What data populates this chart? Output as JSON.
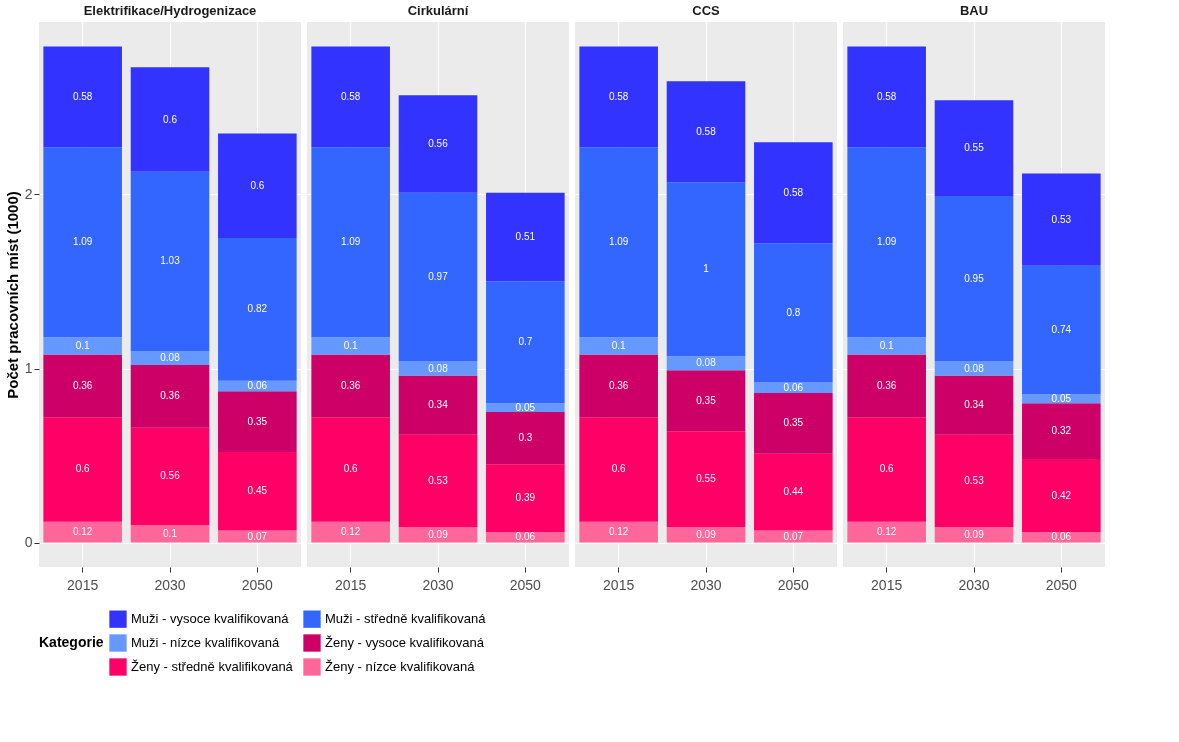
{
  "chart_data": [
    {
      "type": "bar",
      "title": "Elektrifikace/Hydrogenizace",
      "ylabel": "Počet pracovních míst (1000)",
      "categories": [
        "2015",
        "2030",
        "2050"
      ],
      "stacked": true,
      "data_labels": true,
      "grid": true,
      "legend": "bottom",
      "legend_title": "Kategorie",
      "ylim": [
        -0.14,
        2.99
      ],
      "yticks": [
        0,
        1,
        2
      ],
      "series": [
        {
          "name": "Ženy - nízce kvalifikovaná",
          "color": "#ff6699",
          "values": [
            0.12,
            0.1,
            0.07
          ]
        },
        {
          "name": "Ženy - středně kvalifikovaná",
          "color": "#ff0066",
          "values": [
            0.6,
            0.56,
            0.45
          ]
        },
        {
          "name": "Ženy - vysoce kvalifikovaná",
          "color": "#cc0066",
          "values": [
            0.36,
            0.36,
            0.35
          ]
        },
        {
          "name": "Muži - nízce kvalifikovaná",
          "color": "#6699ff",
          "values": [
            0.1,
            0.08,
            0.06
          ]
        },
        {
          "name": "Muži - středně kvalifikovaná",
          "color": "#3366ff",
          "values": [
            1.09,
            1.03,
            0.82
          ]
        },
        {
          "name": "Muži - vysoce kvalifikovaná",
          "color": "#3333ff",
          "values": [
            0.58,
            0.6,
            0.6
          ]
        }
      ]
    },
    {
      "type": "bar",
      "title": "Cirkulární",
      "categories": [
        "2015",
        "2030",
        "2050"
      ],
      "stacked": true,
      "data_labels": true,
      "grid": true,
      "tick_labels": "x",
      "ylim": [
        -0.14,
        2.99
      ],
      "yticks": [
        0,
        1,
        2
      ],
      "series": [
        {
          "name": "Ženy - nízce kvalifikovaná",
          "color": "#ff6699",
          "values": [
            0.12,
            0.09,
            0.06
          ]
        },
        {
          "name": "Ženy - středně kvalifikovaná",
          "color": "#ff0066",
          "values": [
            0.6,
            0.53,
            0.39
          ]
        },
        {
          "name": "Ženy - vysoce kvalifikovaná",
          "color": "#cc0066",
          "values": [
            0.36,
            0.34,
            0.3
          ]
        },
        {
          "name": "Muži - nízce kvalifikovaná",
          "color": "#6699ff",
          "values": [
            0.1,
            0.08,
            0.05
          ]
        },
        {
          "name": "Muži - středně kvalifikovaná",
          "color": "#3366ff",
          "values": [
            1.09,
            0.97,
            0.7
          ]
        },
        {
          "name": "Muži - vysoce kvalifikovaná",
          "color": "#3333ff",
          "values": [
            0.58,
            0.56,
            0.51
          ]
        }
      ]
    },
    {
      "type": "bar",
      "title": "CCS",
      "categories": [
        "2015",
        "2030",
        "2050"
      ],
      "stacked": true,
      "data_labels": true,
      "grid": true,
      "tick_labels": "x",
      "ylim": [
        -0.14,
        2.99
      ],
      "yticks": [
        0,
        1,
        2
      ],
      "series": [
        {
          "name": "Ženy - nízce kvalifikovaná",
          "color": "#ff6699",
          "values": [
            0.12,
            0.09,
            0.07
          ]
        },
        {
          "name": "Ženy - středně kvalifikovaná",
          "color": "#ff0066",
          "values": [
            0.6,
            0.55,
            0.44
          ]
        },
        {
          "name": "Ženy - vysoce kvalifikovaná",
          "color": "#cc0066",
          "values": [
            0.36,
            0.35,
            0.35
          ]
        },
        {
          "name": "Muži - nízce kvalifikovaná",
          "color": "#6699ff",
          "values": [
            0.1,
            0.08,
            0.06
          ]
        },
        {
          "name": "Muži - středně kvalifikovaná",
          "color": "#3366ff",
          "values": [
            1.09,
            1,
            0.8
          ]
        },
        {
          "name": "Muži - vysoce kvalifikovaná",
          "color": "#3333ff",
          "values": [
            0.58,
            0.58,
            0.58
          ]
        }
      ]
    },
    {
      "type": "bar",
      "title": "BAU",
      "categories": [
        "2015",
        "2030",
        "2050"
      ],
      "stacked": true,
      "data_labels": true,
      "grid": true,
      "tick_labels": "x",
      "ylim": [
        -0.14,
        2.99
      ],
      "yticks": [
        0,
        1,
        2
      ],
      "series": [
        {
          "name": "Ženy - nízce kvalifikovaná",
          "color": "#ff6699",
          "values": [
            0.12,
            0.09,
            0.06
          ]
        },
        {
          "name": "Ženy - středně kvalifikovaná",
          "color": "#ff0066",
          "values": [
            0.6,
            0.53,
            0.42
          ]
        },
        {
          "name": "Ženy - vysoce kvalifikovaná",
          "color": "#cc0066",
          "values": [
            0.36,
            0.34,
            0.32
          ]
        },
        {
          "name": "Muži - nízce kvalifikovaná",
          "color": "#6699ff",
          "values": [
            0.1,
            0.08,
            0.05
          ]
        },
        {
          "name": "Muži - středně kvalifikovaná",
          "color": "#3366ff",
          "values": [
            1.09,
            0.95,
            0.74
          ]
        },
        {
          "name": "Muži - vysoce kvalifikovaná",
          "color": "#3333ff",
          "values": [
            0.58,
            0.55,
            0.53
          ]
        }
      ]
    }
  ]
}
